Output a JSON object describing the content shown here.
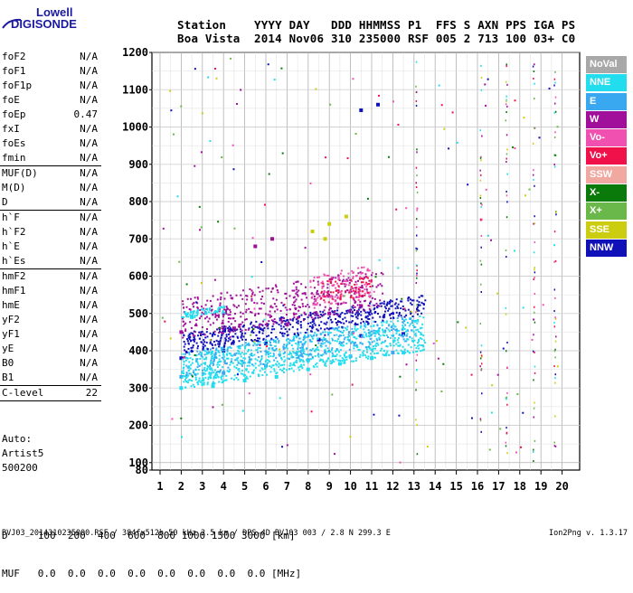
{
  "logo": {
    "line1": "Lowell",
    "line2": "DIGISONDE"
  },
  "header": {
    "keys": "Station    YYYY DAY   DDD HHMMSS P1  FFS S AXN PPS IGA PS",
    "values": "Boa Vista  2014 Nov06 310 235000 RSF 005 2 713 100 03+ C0"
  },
  "params_groups": [
    [
      {
        "name": "foF2",
        "value": "N/A"
      },
      {
        "name": "foF1",
        "value": "N/A"
      },
      {
        "name": "foF1p",
        "value": "N/A"
      },
      {
        "name": "foE",
        "value": "N/A"
      },
      {
        "name": "foEp",
        "value": "0.47"
      },
      {
        "name": "fxI",
        "value": "N/A"
      },
      {
        "name": "foEs",
        "value": "N/A"
      },
      {
        "name": "fmin",
        "value": "N/A"
      }
    ],
    [
      {
        "name": "MUF(D)",
        "value": "N/A"
      },
      {
        "name": "M(D)",
        "value": "N/A"
      },
      {
        "name": "D",
        "value": "N/A"
      }
    ],
    [
      {
        "name": "h`F",
        "value": "N/A"
      },
      {
        "name": "h`F2",
        "value": "N/A"
      },
      {
        "name": "h`E",
        "value": "N/A"
      },
      {
        "name": "h`Es",
        "value": "N/A"
      }
    ],
    [
      {
        "name": "hmF2",
        "value": "N/A"
      },
      {
        "name": "hmF1",
        "value": "N/A"
      },
      {
        "name": "hmE",
        "value": "N/A"
      },
      {
        "name": "yF2",
        "value": "N/A"
      },
      {
        "name": "yF1",
        "value": "N/A"
      },
      {
        "name": "yE",
        "value": "N/A"
      },
      {
        "name": "B0",
        "value": "N/A"
      },
      {
        "name": "B1",
        "value": "N/A"
      }
    ],
    [
      {
        "name": "C-level",
        "value": "22"
      }
    ]
  ],
  "auto": {
    "label": "Auto:",
    "artist": "Artist5",
    "code": "500200"
  },
  "legend": [
    {
      "label": "NoVal",
      "color": "#a8a8a8"
    },
    {
      "label": "NNE",
      "color": "#22ddee"
    },
    {
      "label": "E",
      "color": "#3aa8f0"
    },
    {
      "label": "W",
      "color": "#a0109a"
    },
    {
      "label": "Vo-",
      "color": "#f050b0"
    },
    {
      "label": "Vo+",
      "color": "#f0104a"
    },
    {
      "label": "SSW",
      "color": "#f0a8a0"
    },
    {
      "label": "X-",
      "color": "#0a7a0a"
    },
    {
      "label": "X+",
      "color": "#6ab84a"
    },
    {
      "label": "SSE",
      "color": "#cccc10"
    },
    {
      "label": "NNW",
      "color": "#1010b8"
    }
  ],
  "footer_table": {
    "row1": "D     100  200  400  600  800 1000 1500 3000 [km]",
    "row2": "MUF   0.0  0.0  0.0  0.0  0.0  0.0  0.0  0.0 [MHz]"
  },
  "footer": {
    "left": "BVJ03_2014310235000.RSF / 384fx512h 50 kHz 2.5 km / DPS-4D BVJ03 003 / 2.8 N 299.3 E",
    "right": "Ion2Png v. 1.3.17"
  },
  "chart_data": {
    "type": "scatter",
    "title": "",
    "xlabel": "",
    "ylabel": "",
    "xlim": [
      0.5,
      20
    ],
    "ylim": [
      80,
      1210
    ],
    "x_ticks": [
      "1",
      "2",
      "3",
      "4",
      "5",
      "6",
      "7",
      "8",
      "9",
      "10",
      "11",
      "12",
      "13",
      "14",
      "15",
      "16",
      "17",
      "18",
      "19",
      "20"
    ],
    "y_ticks": [
      "80",
      "100",
      "200",
      "300",
      "400",
      "500",
      "600",
      "700",
      "800",
      "900",
      "1000",
      "1100",
      "1200"
    ],
    "grid": true,
    "series": [
      {
        "name": "NNE",
        "color": "#22ddee",
        "points": [
          [
            2.0,
            300
          ],
          [
            3.5,
            305
          ],
          [
            5.0,
            320
          ],
          [
            6.5,
            330
          ],
          [
            8.0,
            350
          ],
          [
            9.5,
            365
          ],
          [
            11.0,
            380
          ],
          [
            12.5,
            395
          ],
          [
            2.5,
            490
          ],
          [
            4.0,
            500
          ]
        ]
      },
      {
        "name": "E",
        "color": "#3aa8f0",
        "points": [
          [
            2.0,
            330
          ],
          [
            4.0,
            340
          ],
          [
            6.0,
            360
          ],
          [
            8.0,
            375
          ],
          [
            10.0,
            385
          ],
          [
            12.0,
            395
          ]
        ]
      },
      {
        "name": "W",
        "color": "#a0109a",
        "points": [
          [
            2.0,
            450
          ],
          [
            4.5,
            460
          ],
          [
            7.0,
            470
          ],
          [
            9.0,
            500
          ],
          [
            10.5,
            520
          ],
          [
            5.5,
            680
          ],
          [
            6.3,
            700
          ]
        ]
      },
      {
        "name": "NNW",
        "color": "#1010b8",
        "points": [
          [
            2.0,
            380
          ],
          [
            4.0,
            400
          ],
          [
            6.0,
            420
          ],
          [
            8.5,
            430
          ],
          [
            10.5,
            440
          ],
          [
            12.5,
            445
          ],
          [
            10.5,
            1045
          ],
          [
            11.3,
            1060
          ]
        ]
      },
      {
        "name": "SSE",
        "color": "#cccc10",
        "points": [
          [
            8.2,
            720
          ],
          [
            9.0,
            740
          ],
          [
            9.8,
            760
          ],
          [
            8.8,
            700
          ]
        ]
      }
    ]
  }
}
